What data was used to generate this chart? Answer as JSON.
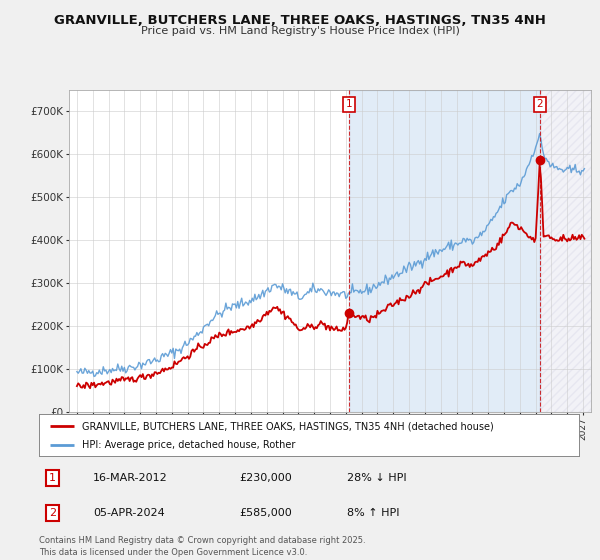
{
  "title_line1": "GRANVILLE, BUTCHERS LANE, THREE OAKS, HASTINGS, TN35 4NH",
  "title_line2": "Price paid vs. HM Land Registry's House Price Index (HPI)",
  "ylim": [
    0,
    750000
  ],
  "yticks": [
    0,
    100000,
    200000,
    300000,
    400000,
    500000,
    600000,
    700000
  ],
  "ytick_labels": [
    "£0",
    "£100K",
    "£200K",
    "£300K",
    "£400K",
    "£500K",
    "£600K",
    "£700K"
  ],
  "xlim_start": 1994.5,
  "xlim_end": 2027.5,
  "hpi_color": "#5b9bd5",
  "hpi_fill_color": "#ddeeff",
  "price_color": "#cc0000",
  "marker1_year": 2012.21,
  "marker1_price": 230000,
  "marker2_year": 2024.27,
  "marker2_price": 585000,
  "legend_label1": "GRANVILLE, BUTCHERS LANE, THREE OAKS, HASTINGS, TN35 4NH (detached house)",
  "legend_label2": "HPI: Average price, detached house, Rother",
  "annotation1_date": "16-MAR-2012",
  "annotation1_price": "£230,000",
  "annotation1_hpi": "28% ↓ HPI",
  "annotation2_date": "05-APR-2024",
  "annotation2_price": "£585,000",
  "annotation2_hpi": "8% ↑ HPI",
  "footer": "Contains HM Land Registry data © Crown copyright and database right 2025.\nThis data is licensed under the Open Government Licence v3.0.",
  "bg_color": "#f0f0f0",
  "plot_bg_color": "#ffffff",
  "grid_color": "#cccccc"
}
